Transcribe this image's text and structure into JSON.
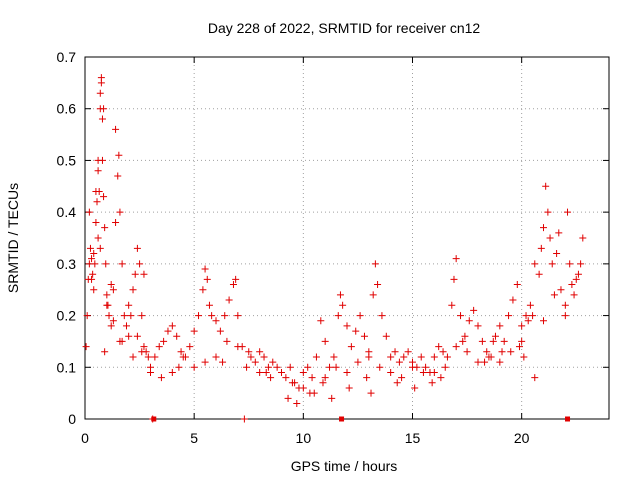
{
  "chart_data": {
    "type": "scatter",
    "title": "Day 228 of 2022, SRMTID for receiver cn12",
    "xlabel": "GPS time / hours",
    "ylabel": "SRMTID / TECUs",
    "xlim": [
      0,
      24
    ],
    "ylim": [
      0,
      0.7
    ],
    "xticks": [
      0,
      5,
      10,
      15,
      20
    ],
    "xtick_labels": [
      "0",
      "5",
      "10",
      "15",
      "20"
    ],
    "yticks": [
      0,
      0.1,
      0.2,
      0.3,
      0.4,
      0.5,
      0.6,
      0.7
    ],
    "ytick_labels": [
      "0",
      "0.1",
      "0.2",
      "0.3",
      "0.4",
      "0.5",
      "0.6",
      "0.7"
    ],
    "grid": true,
    "legend": "none",
    "marker": "plus",
    "marker_color": "#e00000",
    "series": [
      {
        "name": "SRMTID",
        "x": [
          0.05,
          0.1,
          0.15,
          0.2,
          0.25,
          0.3,
          0.35,
          0.4,
          0.45,
          0.5,
          0.55,
          0.6,
          0.65,
          0.7,
          0.75,
          0.8,
          0.85,
          0.9,
          0.95,
          1.0,
          1.05,
          1.1,
          1.2,
          1.3,
          1.4,
          1.5,
          1.55,
          1.6,
          1.7,
          1.8,
          1.9,
          2.0,
          2.1,
          2.2,
          2.3,
          2.4,
          2.5,
          2.6,
          2.7,
          2.8,
          2.9,
          3.0,
          3.2,
          3.4,
          3.6,
          3.8,
          4.0,
          4.2,
          4.4,
          4.6,
          4.8,
          5.0,
          5.2,
          5.4,
          5.5,
          5.6,
          5.7,
          5.8,
          6.0,
          6.2,
          6.4,
          6.6,
          6.8,
          6.9,
          7.0,
          7.2,
          7.4,
          7.6,
          7.8,
          8.0,
          8.2,
          8.4,
          8.6,
          8.8,
          9.0,
          9.2,
          9.4,
          9.6,
          9.8,
          10.0,
          10.2,
          10.4,
          10.6,
          10.8,
          11.0,
          11.2,
          11.4,
          11.6,
          11.7,
          11.8,
          12.0,
          12.2,
          12.4,
          12.6,
          12.8,
          13.0,
          13.2,
          13.3,
          13.4,
          13.6,
          13.8,
          14.0,
          14.2,
          14.4,
          14.6,
          14.8,
          15.0,
          15.2,
          15.4,
          15.6,
          15.8,
          16.0,
          16.2,
          16.4,
          16.6,
          16.8,
          16.9,
          17.0,
          17.2,
          17.4,
          17.6,
          17.8,
          18.0,
          18.2,
          18.4,
          18.6,
          18.8,
          19.0,
          19.2,
          19.4,
          19.6,
          19.8,
          20.0,
          20.2,
          20.4,
          20.6,
          20.8,
          20.9,
          21.0,
          21.1,
          21.2,
          21.4,
          21.6,
          21.8,
          22.0,
          22.1,
          22.2,
          22.4,
          22.6,
          22.8,
          0.7,
          0.75,
          0.7,
          0.8,
          1.4,
          0.85,
          0.6,
          0.5,
          0.2,
          0.3,
          0.4,
          0.6,
          1.0,
          1.3,
          1.6,
          2.0,
          2.4,
          0.9,
          1.2,
          1.7,
          2.2,
          2.6,
          3.0,
          3.5,
          4.0,
          4.5,
          5.0,
          5.5,
          6.0,
          6.5,
          7.0,
          7.5,
          8.0,
          8.5,
          9.0,
          9.5,
          10.0,
          10.5,
          11.0,
          11.5,
          12.0,
          12.5,
          13.0,
          13.5,
          14.0,
          14.5,
          15.0,
          15.5,
          16.0,
          16.5,
          17.0,
          17.5,
          18.0,
          18.5,
          19.0,
          19.5,
          20.0,
          20.5,
          21.0,
          21.5,
          22.0,
          22.5,
          3.1,
          7.3,
          9.3,
          9.7,
          10.3,
          10.9,
          12.1,
          12.9,
          14.3,
          15.1,
          15.9,
          17.3,
          18.3,
          19.1,
          19.9,
          20.3,
          20.6,
          21.3,
          21.7,
          22.3,
          22.7,
          2.7,
          4.3,
          6.3,
          8.3,
          11.3,
          13.1,
          16.3,
          18.7,
          20.1
        ],
        "y": [
          0.14,
          0.2,
          0.27,
          0.3,
          0.33,
          0.31,
          0.28,
          0.25,
          0.3,
          0.38,
          0.42,
          0.48,
          0.44,
          0.6,
          0.65,
          0.5,
          0.43,
          0.37,
          0.3,
          0.24,
          0.22,
          0.2,
          0.18,
          0.25,
          0.38,
          0.47,
          0.51,
          0.4,
          0.3,
          0.2,
          0.18,
          0.16,
          0.2,
          0.25,
          0.28,
          0.33,
          0.3,
          0.2,
          0.14,
          0.13,
          0.12,
          0.1,
          0.12,
          0.14,
          0.15,
          0.17,
          0.18,
          0.16,
          0.13,
          0.12,
          0.14,
          0.17,
          0.2,
          0.25,
          0.29,
          0.27,
          0.22,
          0.2,
          0.19,
          0.17,
          0.2,
          0.23,
          0.26,
          0.27,
          0.2,
          0.14,
          0.1,
          0.12,
          0.11,
          0.13,
          0.12,
          0.1,
          0.11,
          0.1,
          0.09,
          0.08,
          0.1,
          0.07,
          0.06,
          0.09,
          0.1,
          0.08,
          0.12,
          0.19,
          0.15,
          0.1,
          0.12,
          0.2,
          0.24,
          0.22,
          0.18,
          0.14,
          0.17,
          0.2,
          0.16,
          0.12,
          0.24,
          0.3,
          0.26,
          0.2,
          0.16,
          0.12,
          0.13,
          0.11,
          0.12,
          0.13,
          0.11,
          0.1,
          0.12,
          0.1,
          0.09,
          0.12,
          0.14,
          0.13,
          0.12,
          0.22,
          0.27,
          0.31,
          0.2,
          0.16,
          0.19,
          0.21,
          0.18,
          0.15,
          0.13,
          0.12,
          0.16,
          0.18,
          0.15,
          0.2,
          0.23,
          0.26,
          0.18,
          0.2,
          0.22,
          0.3,
          0.28,
          0.33,
          0.37,
          0.45,
          0.4,
          0.3,
          0.32,
          0.25,
          0.22,
          0.4,
          0.3,
          0.24,
          0.28,
          0.35,
          0.33,
          0.66,
          0.63,
          0.58,
          0.56,
          0.6,
          0.5,
          0.44,
          0.4,
          0.27,
          0.32,
          0.35,
          0.22,
          0.19,
          0.15,
          0.22,
          0.16,
          0.13,
          0.26,
          0.15,
          0.12,
          0.13,
          0.09,
          0.08,
          0.09,
          0.12,
          0.1,
          0.11,
          0.12,
          0.15,
          0.14,
          0.13,
          0.09,
          0.08,
          0.09,
          0.07,
          0.06,
          0.05,
          0.08,
          0.1,
          0.09,
          0.11,
          0.13,
          0.1,
          0.09,
          0.08,
          0.1,
          0.09,
          0.09,
          0.1,
          0.14,
          0.13,
          0.11,
          0.12,
          0.11,
          0.13,
          0.15,
          0.2,
          0.19,
          0.24,
          0.2,
          0.27,
          0.0,
          0.0,
          0.04,
          0.03,
          0.05,
          0.07,
          0.06,
          0.08,
          0.07,
          0.06,
          0.07,
          0.15,
          0.11,
          0.13,
          0.14,
          0.19,
          0.08,
          0.35,
          0.36,
          0.26,
          0.3,
          0.28,
          0.1,
          0.11,
          0.09,
          0.04,
          0.05,
          0.08,
          0.15,
          0.12
        ]
      }
    ],
    "axis_markers": [
      3.15,
      11.75,
      22.1
    ]
  }
}
